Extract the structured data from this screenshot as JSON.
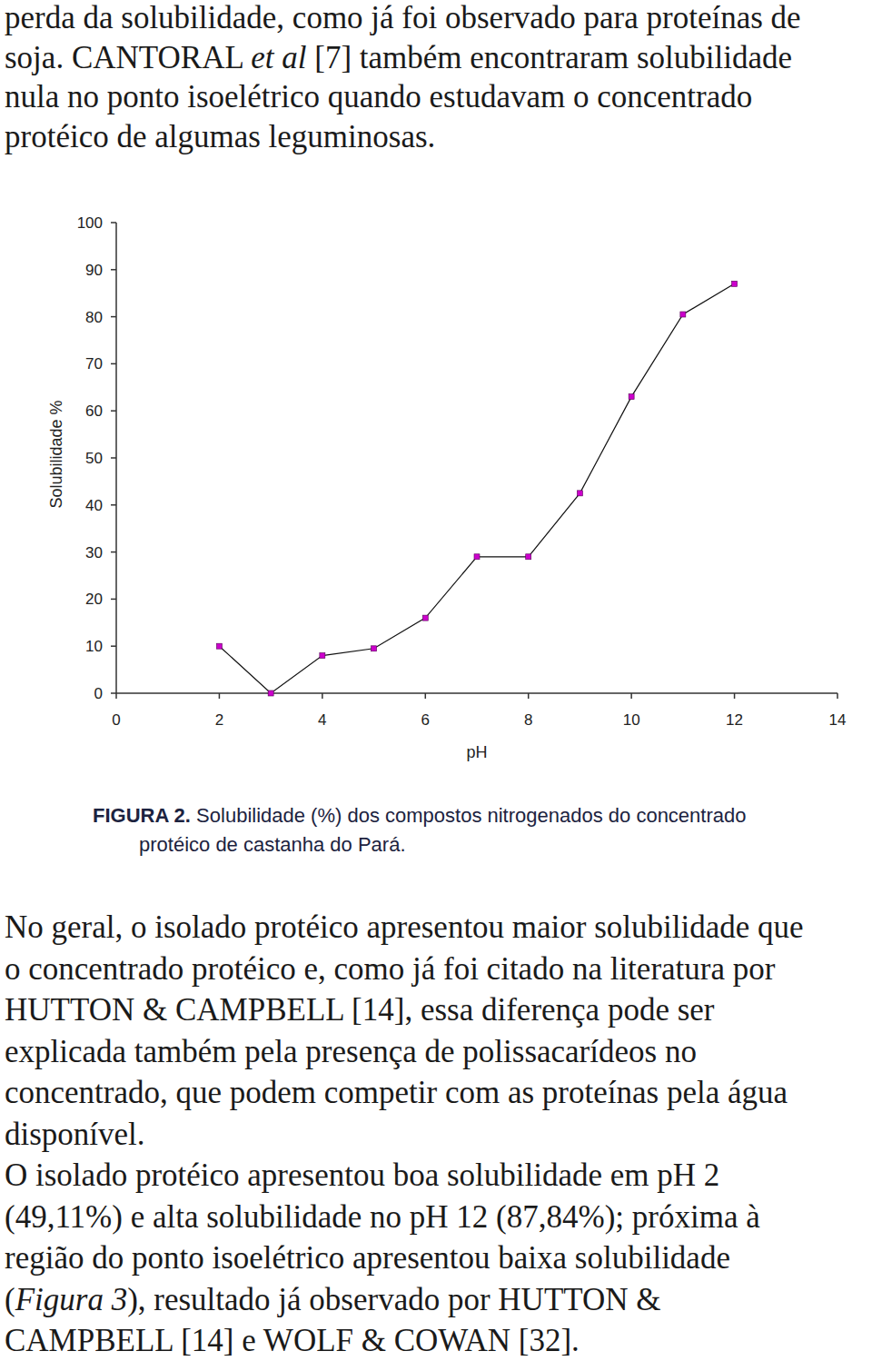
{
  "text_above": {
    "lines": [
      [
        {
          "text": "perda da solubilidade, como já foi observado para proteínas de"
        }
      ],
      [
        {
          "text": "soja. CANTORAL "
        },
        {
          "text": "et al",
          "italic": true
        },
        {
          "text": " [7] também encontraram solubilidade"
        }
      ],
      [
        {
          "text": "nula no ponto isoelétrico quando estudavam o concentrado"
        }
      ],
      [
        {
          "text": "protéico de algumas leguminosas."
        }
      ]
    ]
  },
  "chart_data": {
    "type": "line",
    "xlabel": "pH",
    "ylabel": "Solubilidade %",
    "x": [
      2,
      3,
      4,
      5,
      6,
      7,
      8,
      9,
      10,
      11,
      12
    ],
    "values": [
      10,
      0,
      8,
      9.5,
      16,
      29,
      29,
      42.5,
      63,
      80.5,
      87
    ],
    "color": "#cc00cc",
    "marker": "square",
    "xlim": [
      0,
      14
    ],
    "xticks": [
      0,
      2,
      4,
      6,
      8,
      10,
      12,
      14
    ],
    "ylim": [
      0,
      100
    ],
    "yticks": [
      0,
      10,
      20,
      30,
      40,
      50,
      60,
      70,
      80,
      90,
      100
    ],
    "grid": false
  },
  "caption": {
    "label": "FIGURA 2.",
    "lines": [
      "Solubilidade (%) dos compostos nitrogenados do concentrado",
      "protéico de castanha do Pará."
    ]
  },
  "text_below": {
    "lines": [
      [
        {
          "text": "No geral, o isolado protéico apresentou maior solubilidade que"
        }
      ],
      [
        {
          "text": "o concentrado protéico e, como já foi citado na literatura por"
        }
      ],
      [
        {
          "text": "HUTTON & CAMPBELL [14], essa diferença pode ser"
        }
      ],
      [
        {
          "text": "explicada também pela presença de polissacarídeos no"
        }
      ],
      [
        {
          "text": "concentrado, que podem competir com as proteínas pela água"
        }
      ],
      [
        {
          "text": "disponível."
        }
      ],
      [
        {
          "text": "O isolado protéico apresentou boa solubilidade em pH 2"
        }
      ],
      [
        {
          "text": "(49,11%) e alta solubilidade no pH 12 (87,84%); próxima à"
        }
      ],
      [
        {
          "text": "região do ponto isoelétrico apresentou baixa solubilidade"
        }
      ],
      [
        {
          "text": "("
        },
        {
          "text": "Figura 3",
          "italic": true
        },
        {
          "text": "), resultado já observado por HUTTON &"
        }
      ],
      [
        {
          "text": "CAMPBELL [14] e WOLF & COWAN [32]."
        }
      ]
    ]
  }
}
